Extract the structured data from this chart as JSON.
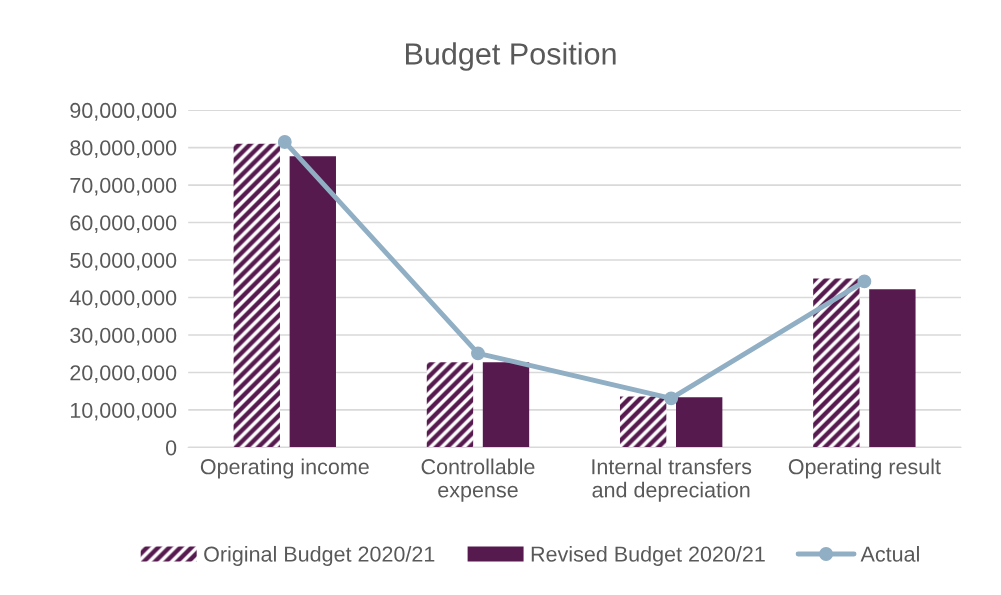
{
  "chart_data": {
    "type": "bar",
    "title": "Budget Position",
    "categories": [
      "Operating income",
      "Controllable\nexpense",
      "Internal transfers\nand depreciation",
      "Operating result"
    ],
    "series": [
      {
        "name": "Original Budget 2020/21",
        "color": "#561a4f",
        "values": [
          81000000,
          22700000,
          13600000,
          45100000
        ]
      },
      {
        "name": "Revised Budget 2020/21",
        "color": "#561a4f",
        "values": [
          77700000,
          22700000,
          13400000,
          42200000
        ]
      },
      {
        "name": "Actual",
        "type": "line",
        "color": "#91afc4",
        "marker": "circle",
        "values": [
          81500000,
          25100000,
          13100000,
          44300000
        ]
      }
    ],
    "ylim": [
      0,
      90000000
    ],
    "yticks": [
      0,
      {
        "value": 10000000,
        "label": "10,000,000"
      },
      {
        "value": 20000000,
        "label": "20,000,000"
      },
      {
        "value": 30000000,
        "label": "30,000,000"
      },
      {
        "value": 40000000,
        "label": "40,000,000"
      },
      {
        "value": 50000000,
        "label": "50,000,000"
      },
      {
        "value": 60000000,
        "label": "60,000,000"
      },
      {
        "value": 70000000,
        "label": "70,000,000"
      },
      {
        "value": 80000000,
        "label": "80,000,000"
      },
      {
        "value": 90000000,
        "label": "90,000,000"
      }
    ],
    "grid": "y",
    "legend": "bottom"
  }
}
